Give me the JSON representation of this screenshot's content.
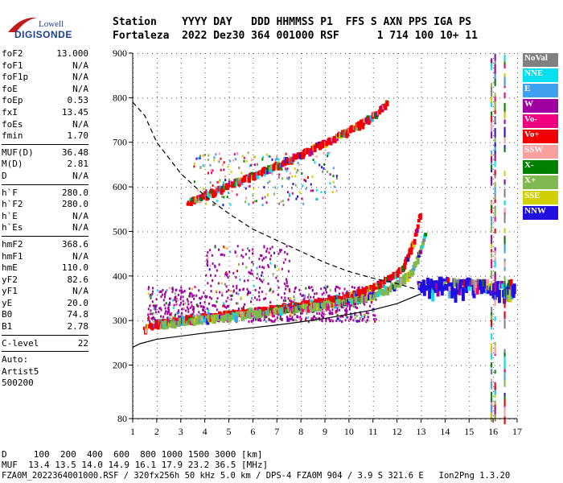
{
  "logo": {
    "line1": "Lowell",
    "line2": "DIGISONDE"
  },
  "header": {
    "line1": "Station    YYYY DAY   DDD HHMMSS P1  FFS S AXN PPS IGA PS",
    "line2": "Fortaleza  2022 Dez30 364 001000 RSF      1 714 100 10+ 11"
  },
  "params": {
    "group1": [
      {
        "name": "foF2",
        "value": "13.000"
      },
      {
        "name": "foF1",
        "value": "N/A"
      },
      {
        "name": "foF1p",
        "value": "N/A"
      },
      {
        "name": "foE",
        "value": "N/A"
      },
      {
        "name": "foEp",
        "value": "0.53"
      },
      {
        "name": "fxI",
        "value": "13.45"
      },
      {
        "name": "foEs",
        "value": "N/A"
      },
      {
        "name": "fmin",
        "value": "1.70"
      }
    ],
    "group2": [
      {
        "name": "MUF(D)",
        "value": "36.48"
      },
      {
        "name": "M(D)",
        "value": "2.81"
      },
      {
        "name": "D",
        "value": "N/A"
      }
    ],
    "group3": [
      {
        "name": "h`F",
        "value": "280.0"
      },
      {
        "name": "h`F2",
        "value": "280.0"
      },
      {
        "name": "h`E",
        "value": "N/A"
      },
      {
        "name": "h`Es",
        "value": "N/A"
      }
    ],
    "group4": [
      {
        "name": "hmF2",
        "value": "368.6"
      },
      {
        "name": "hmF1",
        "value": "N/A"
      },
      {
        "name": "hmE",
        "value": "110.0"
      },
      {
        "name": "yF2",
        "value": "82.6"
      },
      {
        "name": "yF1",
        "value": "N/A"
      },
      {
        "name": "yE",
        "value": "20.0"
      },
      {
        "name": "B0",
        "value": "74.8"
      },
      {
        "name": "B1",
        "value": "2.78"
      }
    ],
    "group5": [
      {
        "name": "C-level",
        "value": "22"
      }
    ]
  },
  "auto": {
    "line1": "Auto:",
    "line2": "Artist5",
    "line3": "500200"
  },
  "footer": {
    "d_line": "D     100  200  400  600  800 1000 1500 3000 [km]",
    "muf_line": "MUF  13.4 13.5 14.0 14.9 16.1 17.9 23.2 36.5 [MHz]",
    "file_line": "FZA0M_2022364001000.RSF / 320fx256h 50 kHz 5.0 km / DPS-4 FZA0M 904 / 3.9 S 321.6 E   Ion2Png 1.3.20"
  },
  "legend": [
    {
      "label": "NoVal",
      "color": "#808080"
    },
    {
      "label": "NNE",
      "color": "#00e0f0"
    },
    {
      "label": "E",
      "color": "#40a0f0"
    },
    {
      "label": "W",
      "color": "#a000a0"
    },
    {
      "label": "Vo-",
      "color": "#f00080"
    },
    {
      "label": "Vo+",
      "color": "#f00000"
    },
    {
      "label": "SSW",
      "color": "#f8a0a0"
    },
    {
      "label": "X-",
      "color": "#008000"
    },
    {
      "label": "X+",
      "color": "#80b850"
    },
    {
      "label": "SSE",
      "color": "#d0d000"
    },
    {
      "label": "NNW",
      "color": "#2010e0"
    }
  ],
  "chart_data": {
    "type": "scatter",
    "xlabel": "",
    "ylabel": "",
    "xlim": [
      1,
      17
    ],
    "ylim": [
      80,
      900
    ],
    "x_ticks": [
      1,
      2,
      3,
      4,
      5,
      6,
      7,
      8,
      9,
      10,
      11,
      12,
      13,
      14,
      15,
      16,
      17
    ],
    "y_ticks": [
      80,
      200,
      300,
      400,
      500,
      600,
      700,
      800,
      900
    ],
    "grid": true,
    "traces": [
      {
        "name": "o-trace F2",
        "color": "#f00000",
        "x": [
          1.5,
          2,
          3,
          4,
          5,
          6,
          7,
          8,
          9,
          10,
          11,
          11.8,
          12.3,
          12.7,
          13.0
        ],
        "y": [
          278,
          290,
          298,
          305,
          312,
          318,
          325,
          332,
          340,
          352,
          370,
          395,
          420,
          470,
          540
        ]
      },
      {
        "name": "x-trace F2",
        "color": "#80b850",
        "x": [
          2.2,
          3,
          4,
          5,
          6,
          7,
          8,
          9,
          10,
          11,
          12,
          12.6,
          12.9,
          13.2
        ],
        "y": [
          288,
          294,
          300,
          306,
          312,
          318,
          324,
          332,
          340,
          352,
          378,
          405,
          440,
          490
        ]
      },
      {
        "name": "2nd hop",
        "color": "#f00000",
        "x": [
          3.3,
          4,
          5,
          6,
          7,
          8,
          9,
          10,
          11,
          11.6
        ],
        "y": [
          560,
          578,
          600,
          622,
          645,
          670,
          695,
          722,
          755,
          785
        ]
      },
      {
        "name": "spread F",
        "color": "#2010e0",
        "x": [
          12.9,
          13.5,
          14,
          14.5,
          15,
          15.5,
          16,
          16.5,
          16.9
        ],
        "y": [
          370,
          368,
          372,
          366,
          370,
          364,
          368,
          362,
          366
        ]
      }
    ],
    "profile": {
      "name": "electron density profile",
      "x": [
        1.0,
        1.3,
        2,
        3,
        4,
        5,
        6,
        7,
        8,
        9,
        10,
        11,
        12,
        13
      ],
      "y": [
        240,
        248,
        258,
        265,
        272,
        278,
        284,
        290,
        297,
        305,
        314,
        324,
        338,
        360
      ]
    },
    "muf_curve": {
      "name": "MUF curve (dashed)",
      "x": [
        1.0,
        1.5,
        2,
        3,
        4,
        5,
        6,
        7,
        8,
        9,
        10,
        11,
        12,
        12.8
      ],
      "y": [
        790,
        760,
        700,
        630,
        580,
        540,
        505,
        480,
        455,
        430,
        410,
        395,
        383,
        370
      ]
    }
  }
}
